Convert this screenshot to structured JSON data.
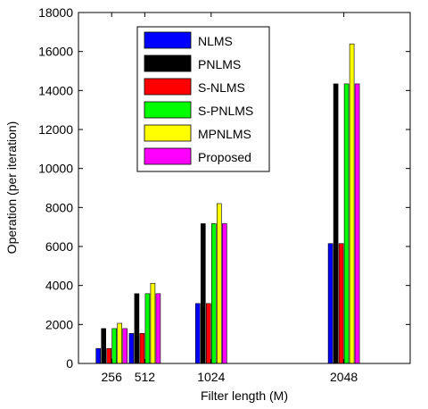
{
  "chart_data": {
    "type": "bar",
    "title": "",
    "xlabel": "Filter length (M)",
    "ylabel": "Operation (per iteration)",
    "x": [
      256,
      512,
      1024,
      2048
    ],
    "xlim": [
      0,
      2560
    ],
    "ylim": [
      0,
      18000
    ],
    "xticks": [
      "256",
      "512",
      "1024",
      "2048"
    ],
    "yticks": [
      0,
      2000,
      4000,
      6000,
      8000,
      10000,
      12000,
      14000,
      16000,
      18000
    ],
    "grid": false,
    "legend_position": "top-left",
    "series": [
      {
        "name": "NLMS",
        "color": "#0000ff",
        "values": [
          770,
          1540,
          3075,
          6150
        ]
      },
      {
        "name": "PNLMS",
        "color": "#000000",
        "values": [
          1790,
          3580,
          7170,
          14340
        ]
      },
      {
        "name": "S-NLMS",
        "color": "#ff0000",
        "values": [
          770,
          1540,
          3075,
          6150
        ]
      },
      {
        "name": "S-PNLMS",
        "color": "#00ff00",
        "values": [
          1790,
          3580,
          7170,
          14340
        ]
      },
      {
        "name": "MPNLMS",
        "color": "#ffff00",
        "values": [
          2060,
          4110,
          8200,
          16390
        ]
      },
      {
        "name": "Proposed",
        "color": "#ff00ff",
        "values": [
          1790,
          3580,
          7170,
          14340
        ]
      }
    ]
  }
}
